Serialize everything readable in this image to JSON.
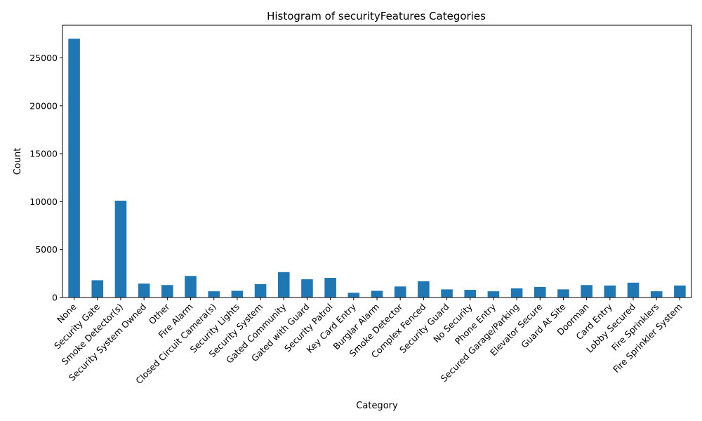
{
  "chart_data": {
    "type": "bar",
    "title": "Histogram of securityFeatures Categories",
    "xlabel": "Category",
    "ylabel": "Count",
    "ylim": [
      0,
      28400
    ],
    "yticks": [
      0,
      5000,
      10000,
      15000,
      20000,
      25000
    ],
    "grid": false,
    "legend": "none",
    "bar_color": "#1f77b4",
    "categories": [
      "None",
      "Security Gate",
      "Smoke Detector(s)",
      "Security System Owned",
      "Other",
      "Fire Alarm",
      "Closed Circuit Camera(s)",
      "Security Lights",
      "Security System",
      "Gated Community",
      "Gated with Guard",
      "Security Patrol",
      "Key Card Entry",
      "Burglar Alarm",
      "Smoke Detector",
      "Complex Fenced",
      "Security Guard",
      "No Security",
      "Phone Entry",
      "Secured Garage/Parking",
      "Elevator Secure",
      "Guard At Site",
      "Doorman",
      "Card Entry",
      "Lobby Secured",
      "Fire Sprinklers",
      "Fire Sprinkler System"
    ],
    "values": [
      27000,
      1800,
      10100,
      1450,
      1300,
      2250,
      650,
      700,
      1400,
      2650,
      1900,
      2050,
      500,
      700,
      1150,
      1700,
      850,
      800,
      650,
      950,
      1100,
      850,
      1300,
      1250,
      1550,
      650,
      1250
    ]
  }
}
